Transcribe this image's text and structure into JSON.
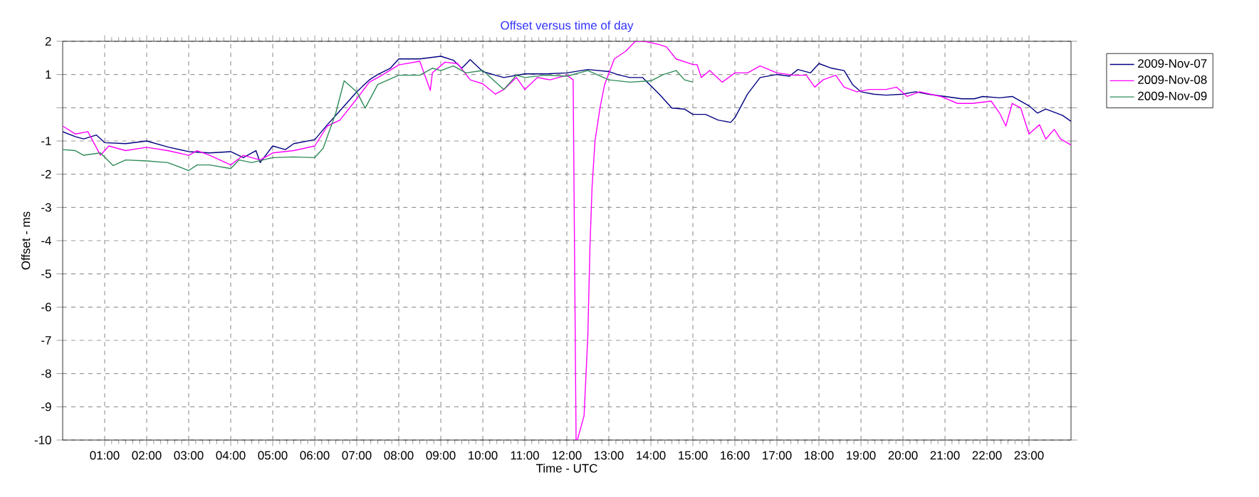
{
  "chart_data": {
    "type": "line",
    "title": "Offset versus time of day",
    "xlabel": "Time - UTC",
    "ylabel": "Offset - ms",
    "xlim": [
      0,
      24
    ],
    "ylim": [
      -10,
      2
    ],
    "xticks": [
      {
        "value": 1,
        "label": "01:00"
      },
      {
        "value": 2,
        "label": "02:00"
      },
      {
        "value": 3,
        "label": "03:00"
      },
      {
        "value": 4,
        "label": "04:00"
      },
      {
        "value": 5,
        "label": "05:00"
      },
      {
        "value": 6,
        "label": "06:00"
      },
      {
        "value": 7,
        "label": "07:00"
      },
      {
        "value": 8,
        "label": "08:00"
      },
      {
        "value": 9,
        "label": "09:00"
      },
      {
        "value": 10,
        "label": "10:00"
      },
      {
        "value": 11,
        "label": "11:00"
      },
      {
        "value": 12,
        "label": "12:00"
      },
      {
        "value": 13,
        "label": "13:00"
      },
      {
        "value": 14,
        "label": "14:00"
      },
      {
        "value": 15,
        "label": "15:00"
      },
      {
        "value": 16,
        "label": "16:00"
      },
      {
        "value": 17,
        "label": "17:00"
      },
      {
        "value": 18,
        "label": "18:00"
      },
      {
        "value": 19,
        "label": "19:00"
      },
      {
        "value": 20,
        "label": "20:00"
      },
      {
        "value": 21,
        "label": "21:00"
      },
      {
        "value": 22,
        "label": "22:00"
      },
      {
        "value": 23,
        "label": "23:00"
      }
    ],
    "yticks": [
      2,
      1,
      {
        "value": 0,
        "label": null
      },
      -1,
      -2,
      -3,
      -4,
      -5,
      -6,
      -7,
      -8,
      -9,
      -10
    ],
    "grid": true,
    "legend": "top right",
    "marker": "none",
    "line_style": "solid",
    "series": [
      {
        "name": "2009-Nov-07",
        "color": "#000080",
        "x": [
          0,
          0.3,
          0.5,
          0.8,
          1.0,
          1.5,
          2,
          2.5,
          3,
          3.5,
          4,
          4.3,
          4.6,
          4.7,
          5,
          5.3,
          5.5,
          6,
          6.3,
          6.6,
          7,
          7.3,
          7.5,
          7.8,
          8,
          8.5,
          9,
          9.3,
          9.5,
          9.7,
          10,
          10.3,
          10.5,
          11,
          11.5,
          12,
          12.5,
          13,
          13.2,
          13.5,
          13.8,
          14.2,
          14.5,
          14.8,
          15,
          15.3,
          15.6,
          15.9,
          16,
          16.3,
          16.6,
          17,
          17.3,
          17.5,
          17.8,
          18,
          18.3,
          18.6,
          18.8,
          19,
          19.3,
          19.6,
          20,
          20.3,
          20.6,
          21,
          21.4,
          21.7,
          21.9,
          22.3,
          22.6,
          23,
          23.2,
          23.4,
          23.8,
          24
        ],
        "values": [
          -0.72,
          -0.87,
          -0.94,
          -0.82,
          -1.05,
          -1.08,
          -1.0,
          -1.18,
          -1.32,
          -1.36,
          -1.32,
          -1.5,
          -1.29,
          -1.65,
          -1.15,
          -1.26,
          -1.08,
          -0.96,
          -0.51,
          -0.09,
          0.48,
          0.84,
          1.0,
          1.19,
          1.47,
          1.47,
          1.55,
          1.43,
          1.19,
          1.45,
          1.09,
          0.98,
          0.91,
          1.02,
          1.02,
          1.05,
          1.15,
          1.09,
          1.0,
          0.91,
          0.91,
          0.41,
          -0.01,
          -0.04,
          -0.2,
          -0.2,
          -0.37,
          -0.44,
          -0.3,
          0.41,
          0.91,
          1.0,
          0.95,
          1.15,
          1.05,
          1.33,
          1.19,
          1.12,
          0.7,
          0.48,
          0.41,
          0.38,
          0.41,
          0.48,
          0.41,
          0.34,
          0.27,
          0.27,
          0.34,
          0.3,
          0.34,
          0.06,
          -0.16,
          -0.04,
          -0.23,
          -0.41
        ]
      },
      {
        "name": "2009-Nov-08",
        "color": "#ff00ff",
        "x": [
          0,
          0.3,
          0.6,
          0.9,
          1.1,
          1.5,
          2,
          2.5,
          3,
          3.2,
          3.5,
          4,
          4.3,
          4.7,
          5,
          5.5,
          6,
          6.3,
          6.6,
          7,
          7.3,
          7.6,
          8,
          8.5,
          8.75,
          8.8,
          9.1,
          9.4,
          9.7,
          10,
          10.3,
          10.5,
          10.8,
          11,
          11.3,
          11.6,
          12,
          12.15,
          12.22,
          12.25,
          12.41,
          12.5,
          12.55,
          12.6,
          12.67,
          12.79,
          12.9,
          13.13,
          13.4,
          13.63,
          13.85,
          14.2,
          14.37,
          14.6,
          15.0,
          15.1,
          15.2,
          15.4,
          15.7,
          16,
          16.3,
          16.6,
          17,
          17.4,
          17.7,
          17.9,
          18.1,
          18.4,
          18.6,
          18.9,
          19.2,
          19.6,
          19.85,
          20.1,
          20.4,
          20.9,
          21.3,
          21.65,
          22.1,
          22.3,
          22.45,
          22.6,
          22.8,
          23.0,
          23.25,
          23.4,
          23.6,
          23.75,
          24
        ],
        "values": [
          -0.55,
          -0.79,
          -0.72,
          -1.43,
          -1.15,
          -1.29,
          -1.19,
          -1.29,
          -1.43,
          -1.29,
          -1.43,
          -1.72,
          -1.43,
          -1.57,
          -1.36,
          -1.29,
          -1.15,
          -0.55,
          -0.37,
          0.27,
          0.77,
          0.98,
          1.29,
          1.4,
          0.52,
          1.05,
          1.37,
          1.33,
          0.84,
          0.72,
          0.41,
          0.55,
          0.91,
          0.55,
          0.91,
          0.84,
          0.98,
          0.84,
          -10,
          -10,
          -9.27,
          -6.85,
          -4.2,
          -2.4,
          -1.0,
          0.0,
          0.7,
          1.47,
          1.7,
          2.0,
          2.0,
          1.9,
          1.83,
          1.47,
          1.3,
          1.3,
          0.91,
          1.12,
          0.77,
          1.05,
          1.05,
          1.26,
          1.05,
          0.98,
          0.98,
          0.62,
          0.84,
          0.98,
          0.62,
          0.48,
          0.55,
          0.55,
          0.62,
          0.34,
          0.48,
          0.34,
          0.13,
          0.13,
          0.2,
          -0.16,
          -0.55,
          0.13,
          0.0,
          -0.79,
          -0.51,
          -0.94,
          -0.65,
          -0.94,
          -1.12
        ]
      },
      {
        "name": "2009-Nov-09",
        "color": "#2e8b57",
        "x": [
          0,
          0.3,
          0.5,
          0.9,
          1.2,
          1.5,
          2,
          2.5,
          3,
          3.2,
          3.5,
          4,
          4.2,
          4.5,
          5,
          5.5,
          6,
          6.2,
          6.5,
          6.7,
          7,
          7.2,
          7.5,
          8,
          8.5,
          8.8,
          9,
          9.3,
          9.6,
          10,
          10.5,
          10.8,
          11,
          11.5,
          12,
          12.5,
          13,
          13.5,
          14,
          14.3,
          14.6,
          14.8,
          15
        ],
        "values": [
          -1.26,
          -1.29,
          -1.43,
          -1.36,
          -1.74,
          -1.57,
          -1.6,
          -1.65,
          -1.89,
          -1.72,
          -1.72,
          -1.83,
          -1.57,
          -1.65,
          -1.5,
          -1.48,
          -1.5,
          -1.22,
          -0.16,
          0.81,
          0.48,
          -0.01,
          0.7,
          0.98,
          0.98,
          1.19,
          1.12,
          1.26,
          1.05,
          1.12,
          0.55,
          0.98,
          0.91,
          0.98,
          0.95,
          1.12,
          0.84,
          0.77,
          0.81,
          1.0,
          1.12,
          0.84,
          0.77
        ]
      }
    ]
  }
}
